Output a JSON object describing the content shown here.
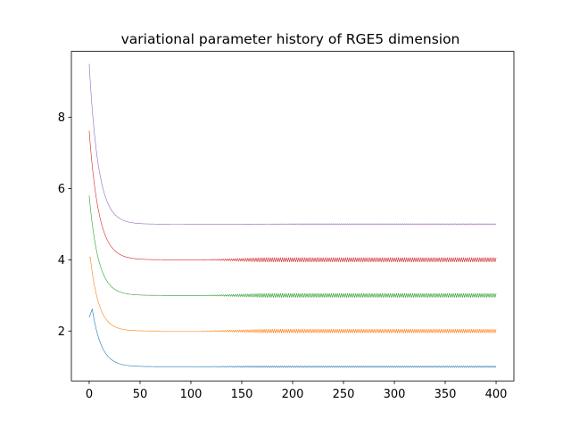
{
  "chart_data": {
    "type": "line",
    "title": "variational parameter history of RGE5 dimension",
    "xlabel": "",
    "ylabel": "",
    "xlim": [
      -17.5,
      417.5
    ],
    "ylim": [
      0.6,
      9.85
    ],
    "xticks": [
      0,
      50,
      100,
      150,
      200,
      250,
      300,
      350,
      400
    ],
    "yticks": [
      2,
      4,
      6,
      8
    ],
    "grid": false,
    "legend": "none",
    "n_steps": 400,
    "series": [
      {
        "color": "#1f77b4",
        "start": 2.38,
        "final": 1.0,
        "peak_step": 3,
        "peak_value": 2.62,
        "decay_tau": 9.0,
        "oscillation_amp": 0.02,
        "oscillation_start": 100
      },
      {
        "color": "#ff7f0e",
        "start": 4.05,
        "final": 2.0,
        "peak_step": 1,
        "peak_value": 4.08,
        "decay_tau": 8.5,
        "oscillation_amp": 0.05,
        "oscillation_start": 110
      },
      {
        "color": "#2ca02c",
        "start": 5.8,
        "final": 3.0,
        "peak_step": 0,
        "peak_value": 5.8,
        "decay_tau": 9.0,
        "oscillation_amp": 0.055,
        "oscillation_start": 110
      },
      {
        "color": "#d62728",
        "start": 7.62,
        "final": 4.0,
        "peak_step": 0,
        "peak_value": 7.62,
        "decay_tau": 9.5,
        "oscillation_amp": 0.06,
        "oscillation_start": 110
      },
      {
        "color": "#9467bd",
        "start": 9.5,
        "final": 5.0,
        "peak_step": 0,
        "peak_value": 9.5,
        "decay_tau": 9.0,
        "oscillation_amp": 0.015,
        "oscillation_start": 150
      }
    ]
  }
}
